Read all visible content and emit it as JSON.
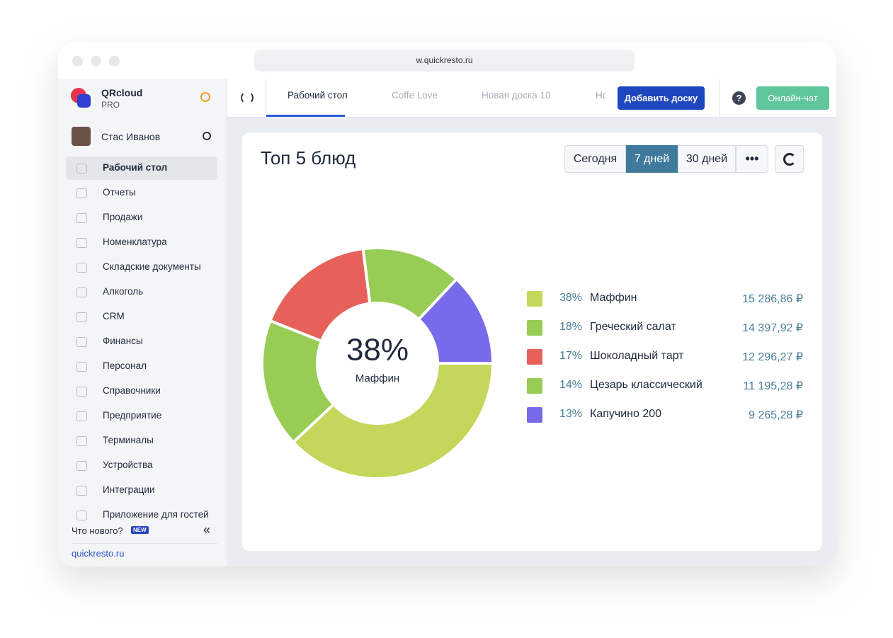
{
  "browser": {
    "url": "w.quickresto.ru"
  },
  "brand": {
    "name": "QRcloud",
    "plan": "PRO"
  },
  "user": {
    "name": "Стас Иванов"
  },
  "menu": [
    "Рабочий стол",
    "Отчеты",
    "Продажи",
    "Номенклатура",
    "Складские документы",
    "Алкоголь",
    "CRM",
    "Финансы",
    "Персонал",
    "Справочники",
    "Предприятие",
    "Терминалы",
    "Устройства",
    "Интеграции",
    "Приложение для гостей"
  ],
  "footer": {
    "whats_new": "Что нового?",
    "badge": "NEW",
    "link": "quickresto.ru"
  },
  "tabs": [
    "Рабочий стол",
    "Coffe Love",
    "Новая доска 10",
    "Нс"
  ],
  "toolbar": {
    "add_board": "Добавить доску",
    "chat": "Онлайн-чат"
  },
  "periods": [
    "Сегодня",
    "7 дней",
    "30 дней"
  ],
  "chart_data": {
    "type": "donut",
    "title": "Топ 5 блюд",
    "categories": [
      "Маффин",
      "Греческий салат",
      "Шоколадный тарт",
      "Цезарь классический",
      "Капучино 200"
    ],
    "values": [
      38,
      18,
      17,
      14,
      13
    ],
    "value_labels": [
      "38%",
      "18%",
      "17%",
      "14%",
      "13%"
    ],
    "colors": [
      "#c4d75a",
      "#97cc55",
      "#e5615a",
      "#97cc55",
      "#786be9"
    ],
    "amounts": [
      "15 286,86 ₽",
      "14 397,92 ₽",
      "12 296,27 ₽",
      "11 195,28 ₽",
      "9 265,28 ₽"
    ]
  }
}
